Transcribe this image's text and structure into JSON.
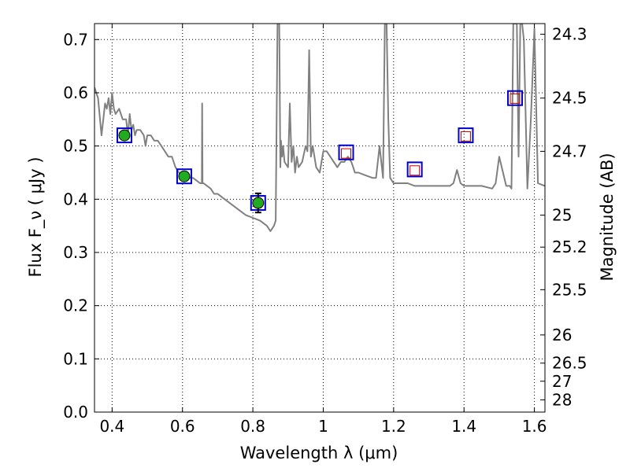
{
  "chart_data": {
    "type": "line",
    "xlabel": "Wavelength  λ (μm)",
    "ylabel": "Flux  F_ν  ( μJy )",
    "y2label": "Magnitude (AB)",
    "xlim": [
      0.35,
      1.63
    ],
    "ylim": [
      0.0,
      0.73
    ],
    "grid": true,
    "grid_style": "dotted",
    "x_ticks": [
      0.4,
      0.6,
      0.8,
      1.0,
      1.2,
      1.4,
      1.6
    ],
    "x_tick_labels": [
      "0.4",
      "0.6",
      "0.8",
      "1",
      "1.2",
      "1.4",
      "1.6"
    ],
    "y_ticks": [
      0.0,
      0.1,
      0.2,
      0.3,
      0.4,
      0.5,
      0.6,
      0.7
    ],
    "y_tick_labels": [
      "0.0",
      "0.1",
      "0.2",
      "0.3",
      "0.4",
      "0.5",
      "0.6",
      "0.7"
    ],
    "y2_ticks": [
      {
        "label": "24.3",
        "flux": 0.71
      },
      {
        "label": "24.5",
        "flux": 0.59
      },
      {
        "label": "24.7",
        "flux": 0.49
      },
      {
        "label": "25",
        "flux": 0.37
      },
      {
        "label": "25.2",
        "flux": 0.31
      },
      {
        "label": "25.5",
        "flux": 0.23
      },
      {
        "label": "26",
        "flux": 0.145
      },
      {
        "label": "26.5",
        "flux": 0.092
      },
      {
        "label": "27",
        "flux": 0.058
      },
      {
        "label": "28",
        "flux": 0.023
      }
    ],
    "colors": {
      "spectrum": "#808080",
      "model_box": "#0000cc",
      "measured_box": "#cc0000",
      "detection": "#22aa22",
      "errorbar": "#000000"
    },
    "spectrum": {
      "x": [
        0.35,
        0.36,
        0.37,
        0.375,
        0.38,
        0.385,
        0.39,
        0.395,
        0.4,
        0.405,
        0.41,
        0.42,
        0.43,
        0.44,
        0.445,
        0.45,
        0.455,
        0.46,
        0.465,
        0.47,
        0.48,
        0.49,
        0.495,
        0.5,
        0.51,
        0.52,
        0.53,
        0.54,
        0.55,
        0.56,
        0.57,
        0.58,
        0.59,
        0.6,
        0.61,
        0.62,
        0.63,
        0.64,
        0.65,
        0.655,
        0.656,
        0.657,
        0.66,
        0.67,
        0.68,
        0.69,
        0.7,
        0.72,
        0.74,
        0.76,
        0.78,
        0.8,
        0.82,
        0.84,
        0.85,
        0.86,
        0.865,
        0.87,
        0.875,
        0.878,
        0.88,
        0.883,
        0.886,
        0.89,
        0.9,
        0.905,
        0.91,
        0.915,
        0.92,
        0.925,
        0.93,
        0.94,
        0.95,
        0.955,
        0.96,
        0.965,
        0.97,
        0.98,
        0.99,
        1.0,
        1.01,
        1.02,
        1.03,
        1.04,
        1.05,
        1.06,
        1.07,
        1.08,
        1.085,
        1.09,
        1.1,
        1.12,
        1.14,
        1.15,
        1.16,
        1.17,
        1.175,
        1.18,
        1.185,
        1.19,
        1.2,
        1.21,
        1.22,
        1.24,
        1.26,
        1.3,
        1.34,
        1.36,
        1.37,
        1.38,
        1.39,
        1.4,
        1.45,
        1.48,
        1.49,
        1.5,
        1.52,
        1.53,
        1.535,
        1.54,
        1.545,
        1.55,
        1.555,
        1.56,
        1.565,
        1.57,
        1.58,
        1.59,
        1.6,
        1.61,
        1.63
      ],
      "y": [
        0.61,
        0.59,
        0.52,
        0.55,
        0.58,
        0.57,
        0.59,
        0.56,
        0.6,
        0.57,
        0.56,
        0.57,
        0.55,
        0.55,
        0.52,
        0.56,
        0.53,
        0.54,
        0.52,
        0.53,
        0.53,
        0.52,
        0.5,
        0.52,
        0.52,
        0.51,
        0.51,
        0.5,
        0.49,
        0.48,
        0.48,
        0.46,
        0.45,
        0.44,
        0.445,
        0.44,
        0.44,
        0.435,
        0.43,
        0.43,
        0.58,
        0.43,
        0.43,
        0.425,
        0.42,
        0.41,
        0.41,
        0.4,
        0.39,
        0.38,
        0.37,
        0.365,
        0.36,
        0.35,
        0.34,
        0.35,
        0.36,
        0.73,
        0.73,
        0.46,
        0.51,
        0.48,
        0.5,
        0.47,
        0.46,
        0.58,
        0.47,
        0.5,
        0.45,
        0.48,
        0.46,
        0.47,
        0.5,
        0.49,
        0.68,
        0.48,
        0.5,
        0.46,
        0.45,
        0.49,
        0.49,
        0.48,
        0.47,
        0.46,
        0.47,
        0.47,
        0.48,
        0.47,
        0.46,
        0.45,
        0.45,
        0.445,
        0.44,
        0.44,
        0.5,
        0.44,
        0.73,
        0.73,
        0.55,
        0.44,
        0.43,
        0.43,
        0.43,
        0.43,
        0.425,
        0.425,
        0.425,
        0.425,
        0.43,
        0.455,
        0.43,
        0.425,
        0.425,
        0.42,
        0.43,
        0.48,
        0.425,
        0.425,
        0.42,
        0.73,
        0.73,
        0.73,
        0.48,
        0.73,
        0.73,
        0.7,
        0.42,
        0.55,
        0.72,
        0.43,
        0.425
      ],
      "line_width": 2
    },
    "model_photometry": {
      "x": [
        0.435,
        0.605,
        0.815,
        1.065,
        1.26,
        1.405,
        1.545
      ],
      "y": [
        0.52,
        0.443,
        0.393,
        0.488,
        0.456,
        0.52,
        0.59
      ]
    },
    "measured_photometry": {
      "x": [
        0.435,
        0.605,
        0.815,
        1.065,
        1.26,
        1.405,
        1.545
      ],
      "y": [
        0.52,
        0.443,
        0.393,
        0.486,
        0.454,
        0.518,
        0.589
      ],
      "detected": [
        true,
        true,
        true,
        false,
        false,
        false,
        false
      ],
      "yerr": [
        0.0,
        0.0,
        0.018,
        0.0,
        0.0,
        0.0,
        0.0
      ]
    }
  }
}
